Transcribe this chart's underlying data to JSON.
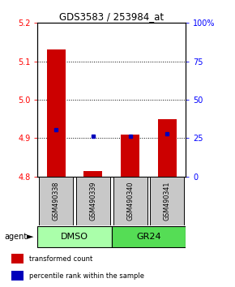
{
  "title": "GDS3583 / 253984_at",
  "samples": [
    "GSM490338",
    "GSM490339",
    "GSM490340",
    "GSM490341"
  ],
  "red_values": [
    5.13,
    4.815,
    4.91,
    4.95
  ],
  "blue_values": [
    4.921,
    4.905,
    4.905,
    4.912
  ],
  "ylim": [
    4.8,
    5.2
  ],
  "yticks_left": [
    4.8,
    4.9,
    5.0,
    5.1,
    5.2
  ],
  "yticks_right": [
    0,
    25,
    50,
    75,
    100
  ],
  "yticks_right_vals": [
    4.8,
    4.9,
    5.0,
    5.1,
    5.2
  ],
  "groups": [
    {
      "label": "DMSO",
      "samples": [
        0,
        1
      ],
      "color": "#AAFFAA"
    },
    {
      "label": "GR24",
      "samples": [
        2,
        3
      ],
      "color": "#55DD55"
    }
  ],
  "bar_color": "#CC0000",
  "dot_color": "#0000BB",
  "bar_width": 0.5,
  "base_value": 4.8,
  "sample_box_color": "#C8C8C8",
  "agent_label": "agent",
  "legend_items": [
    {
      "color": "#CC0000",
      "label": "transformed count"
    },
    {
      "color": "#0000BB",
      "label": "percentile rank within the sample"
    }
  ]
}
